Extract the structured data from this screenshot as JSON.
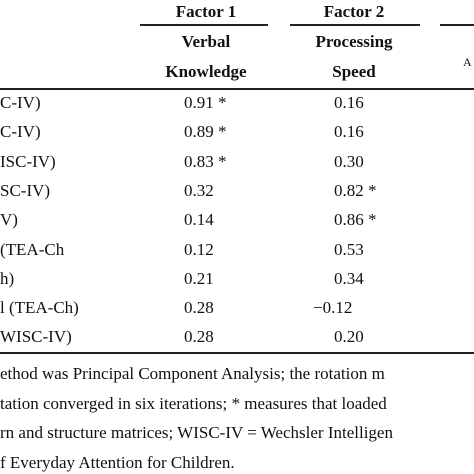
{
  "header": {
    "columns": [
      "Factor 1",
      "Factor 2"
    ],
    "subheaders": [
      [
        "Verbal",
        "Knowledge"
      ],
      [
        "Processing",
        "Speed"
      ]
    ],
    "partial": "A"
  },
  "table": {
    "rows": [
      [
        "C-IV)",
        "0.91 *",
        "0.16"
      ],
      [
        "C-IV)",
        "0.89 *",
        "0.16"
      ],
      [
        "ISC-IV)",
        "0.83 *",
        "0.30"
      ],
      [
        "SC-IV)",
        "0.32",
        "0.82 *"
      ],
      [
        "V)",
        "0.14",
        "0.86 *"
      ],
      [
        "(TEA-Ch",
        "0.12",
        "0.53"
      ],
      [
        "h)",
        "0.21",
        "0.34"
      ],
      [
        "l (TEA-Ch)",
        "0.28",
        "−0.12"
      ],
      [
        "WISC-IV)",
        "0.28",
        "0.20"
      ]
    ]
  },
  "notes": [
    "ethod was Principal Component Analysis; the rotation m",
    "tation converged in six iterations; * measures that loaded",
    "rn and structure matrices; WISC-IV = Wechsler Intelligen",
    "f Everyday Attention for Children."
  ]
}
